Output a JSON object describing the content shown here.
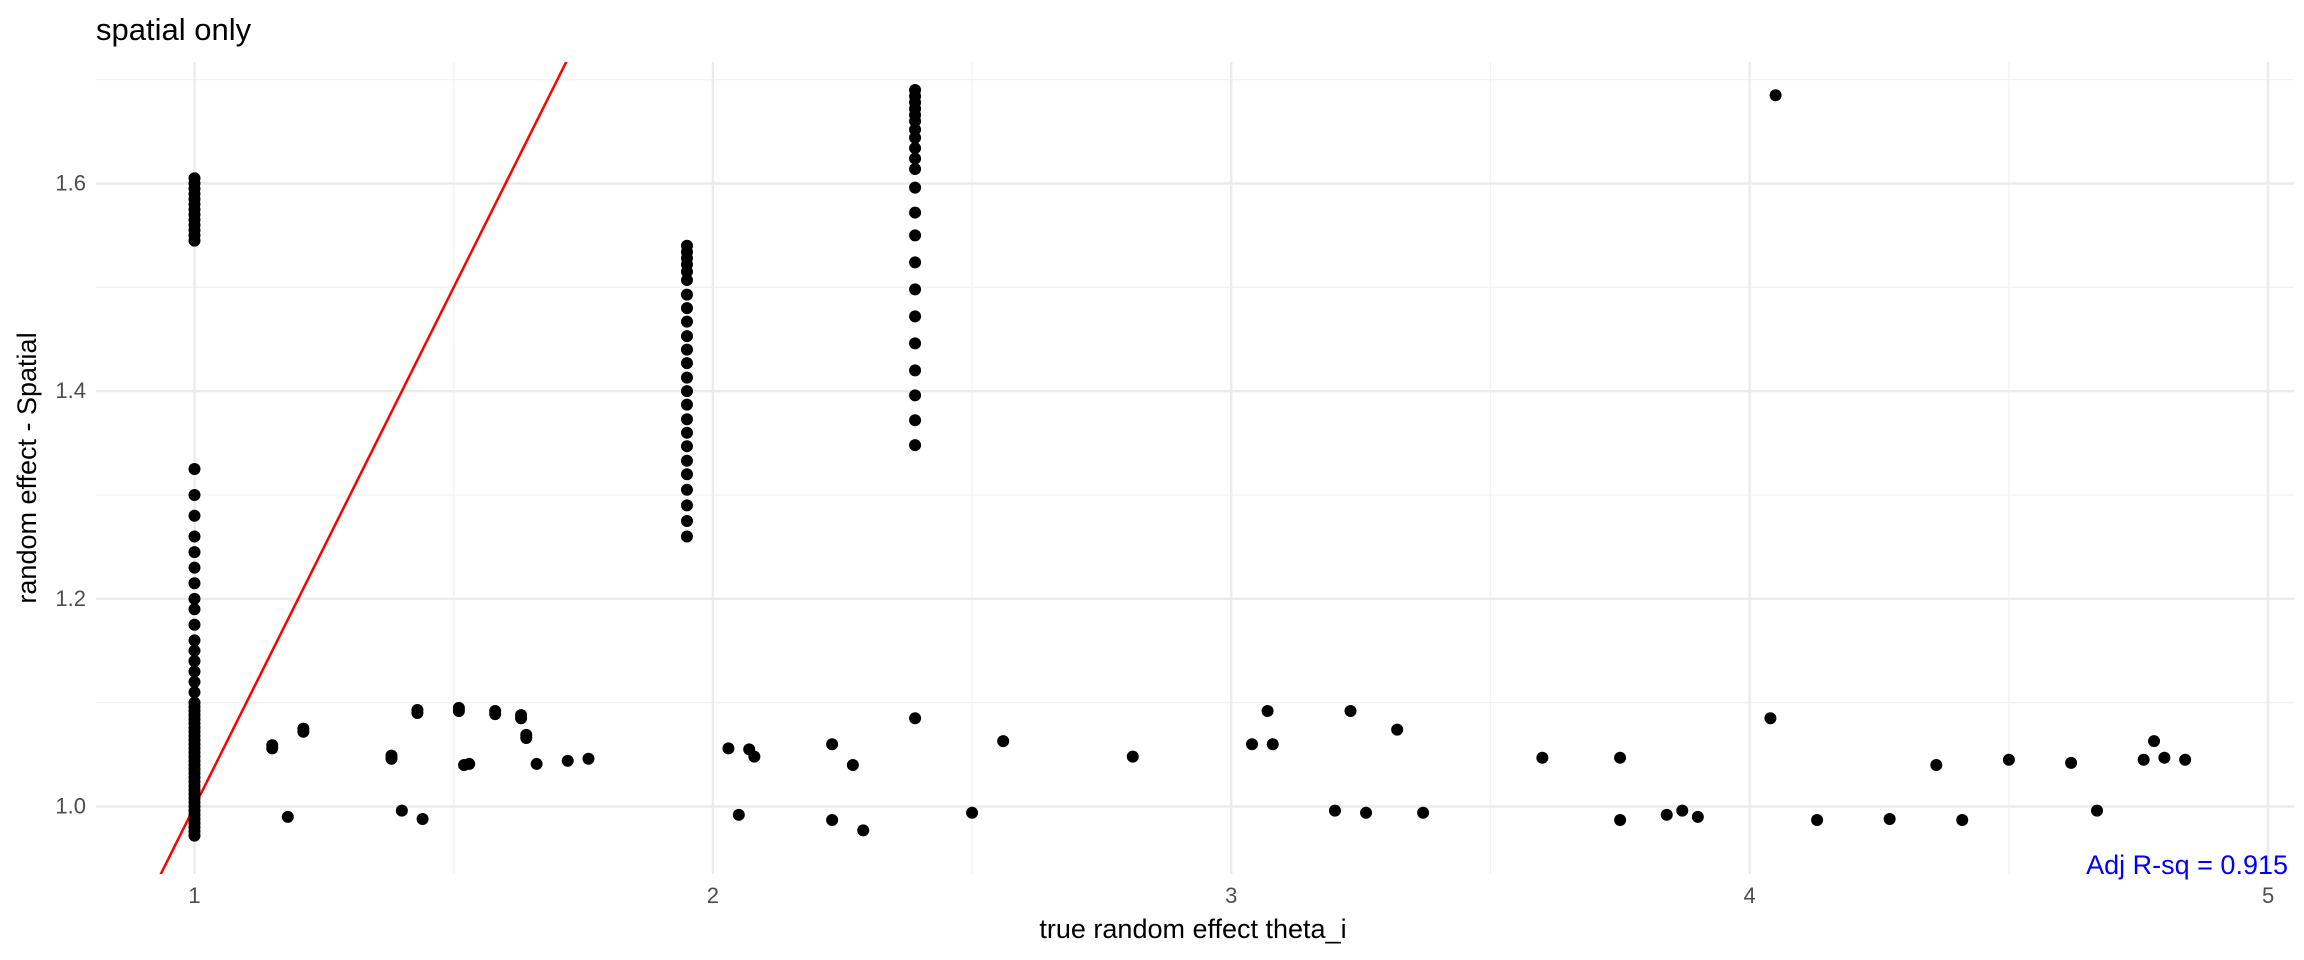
{
  "chart_data": {
    "type": "scatter",
    "title": "spatial only",
    "xlabel": "true random effect theta_i",
    "ylabel": "random effect - Spatial",
    "xlim": [
      0.81,
      5.05
    ],
    "ylim": [
      0.935,
      1.717
    ],
    "x_ticks": [
      1,
      2,
      3,
      4,
      5
    ],
    "y_ticks": [
      1.0,
      1.2,
      1.4,
      1.6
    ],
    "x_tick_labels": [
      "1",
      "2",
      "3",
      "4",
      "5"
    ],
    "y_tick_labels": [
      "1.0",
      "1.2",
      "1.4",
      "1.6"
    ],
    "grid": true,
    "point_color": "#000000",
    "reference_line": {
      "slope": 1,
      "intercept": 0,
      "color": "#ff0000"
    },
    "annotation": {
      "text": "Adj R-sq = 0.915",
      "color": "#0000ff",
      "position": "bottom-right"
    },
    "clusters": [
      {
        "x": 1.0,
        "values": [
          1.545,
          1.55,
          1.555,
          1.56,
          1.565,
          1.57,
          1.575,
          1.58,
          1.585,
          1.59,
          1.595,
          1.6,
          1.605,
          0.972,
          0.976,
          0.98,
          0.984,
          0.988,
          0.992,
          0.996,
          1.0,
          1.004,
          1.008,
          1.012,
          1.016,
          1.02,
          1.024,
          1.028,
          1.032,
          1.036,
          1.04,
          1.044,
          1.048,
          1.052,
          1.056,
          1.06,
          1.064,
          1.068,
          1.072,
          1.076,
          1.08,
          1.084,
          1.088,
          1.092,
          1.096,
          1.1,
          1.11,
          1.12,
          1.13,
          1.14,
          1.15,
          1.16,
          1.175,
          1.19,
          1.2,
          1.215,
          1.23,
          1.245,
          1.26,
          1.28,
          1.3,
          1.325
        ]
      },
      {
        "x": 1.95,
        "values": [
          1.26,
          1.275,
          1.29,
          1.305,
          1.32,
          1.333,
          1.347,
          1.36,
          1.373,
          1.387,
          1.4,
          1.413,
          1.427,
          1.44,
          1.453,
          1.467,
          1.48,
          1.493,
          1.507,
          1.515,
          1.522,
          1.528,
          1.534,
          1.54
        ]
      },
      {
        "x": 2.39,
        "values": [
          1.348,
          1.372,
          1.396,
          1.42,
          1.446,
          1.472,
          1.498,
          1.524,
          1.55,
          1.572,
          1.596,
          1.614,
          1.624,
          1.634,
          1.644,
          1.652,
          1.66,
          1.666,
          1.672,
          1.678,
          1.684,
          1.69,
          1.085
        ]
      }
    ],
    "points": [
      [
        1.15,
        1.056
      ],
      [
        1.15,
        1.059
      ],
      [
        1.18,
        0.99
      ],
      [
        1.21,
        1.072
      ],
      [
        1.21,
        1.075
      ],
      [
        1.38,
        1.046
      ],
      [
        1.38,
        1.049
      ],
      [
        1.4,
        0.996
      ],
      [
        1.43,
        1.09
      ],
      [
        1.43,
        1.093
      ],
      [
        1.44,
        0.988
      ],
      [
        1.51,
        1.092
      ],
      [
        1.51,
        1.095
      ],
      [
        1.52,
        1.04
      ],
      [
        1.53,
        1.041
      ],
      [
        1.58,
        1.089
      ],
      [
        1.58,
        1.092
      ],
      [
        1.63,
        1.085
      ],
      [
        1.63,
        1.088
      ],
      [
        1.64,
        1.066
      ],
      [
        1.64,
        1.069
      ],
      [
        1.66,
        1.041
      ],
      [
        1.72,
        1.044
      ],
      [
        1.76,
        1.046
      ],
      [
        2.03,
        1.056
      ],
      [
        2.05,
        0.992
      ],
      [
        2.07,
        1.055
      ],
      [
        2.08,
        1.048
      ],
      [
        2.23,
        0.987
      ],
      [
        2.23,
        1.06
      ],
      [
        2.27,
        1.04
      ],
      [
        2.29,
        0.977
      ],
      [
        2.5,
        0.994
      ],
      [
        2.56,
        1.063
      ],
      [
        2.81,
        1.048
      ],
      [
        3.04,
        1.06
      ],
      [
        3.07,
        1.092
      ],
      [
        3.08,
        1.06
      ],
      [
        3.2,
        0.996
      ],
      [
        3.23,
        1.092
      ],
      [
        3.26,
        0.994
      ],
      [
        3.32,
        1.074
      ],
      [
        3.37,
        0.994
      ],
      [
        3.6,
        1.047
      ],
      [
        3.75,
        0.987
      ],
      [
        3.75,
        1.047
      ],
      [
        3.84,
        0.992
      ],
      [
        3.87,
        0.996
      ],
      [
        3.9,
        0.99
      ],
      [
        4.04,
        1.085
      ],
      [
        4.05,
        1.685
      ],
      [
        4.13,
        0.987
      ],
      [
        4.27,
        0.988
      ],
      [
        4.36,
        1.04
      ],
      [
        4.41,
        0.987
      ],
      [
        4.5,
        1.045
      ],
      [
        4.62,
        1.042
      ],
      [
        4.67,
        0.996
      ],
      [
        4.76,
        1.045
      ],
      [
        4.78,
        1.063
      ],
      [
        4.8,
        1.047
      ],
      [
        4.84,
        1.045
      ]
    ]
  }
}
